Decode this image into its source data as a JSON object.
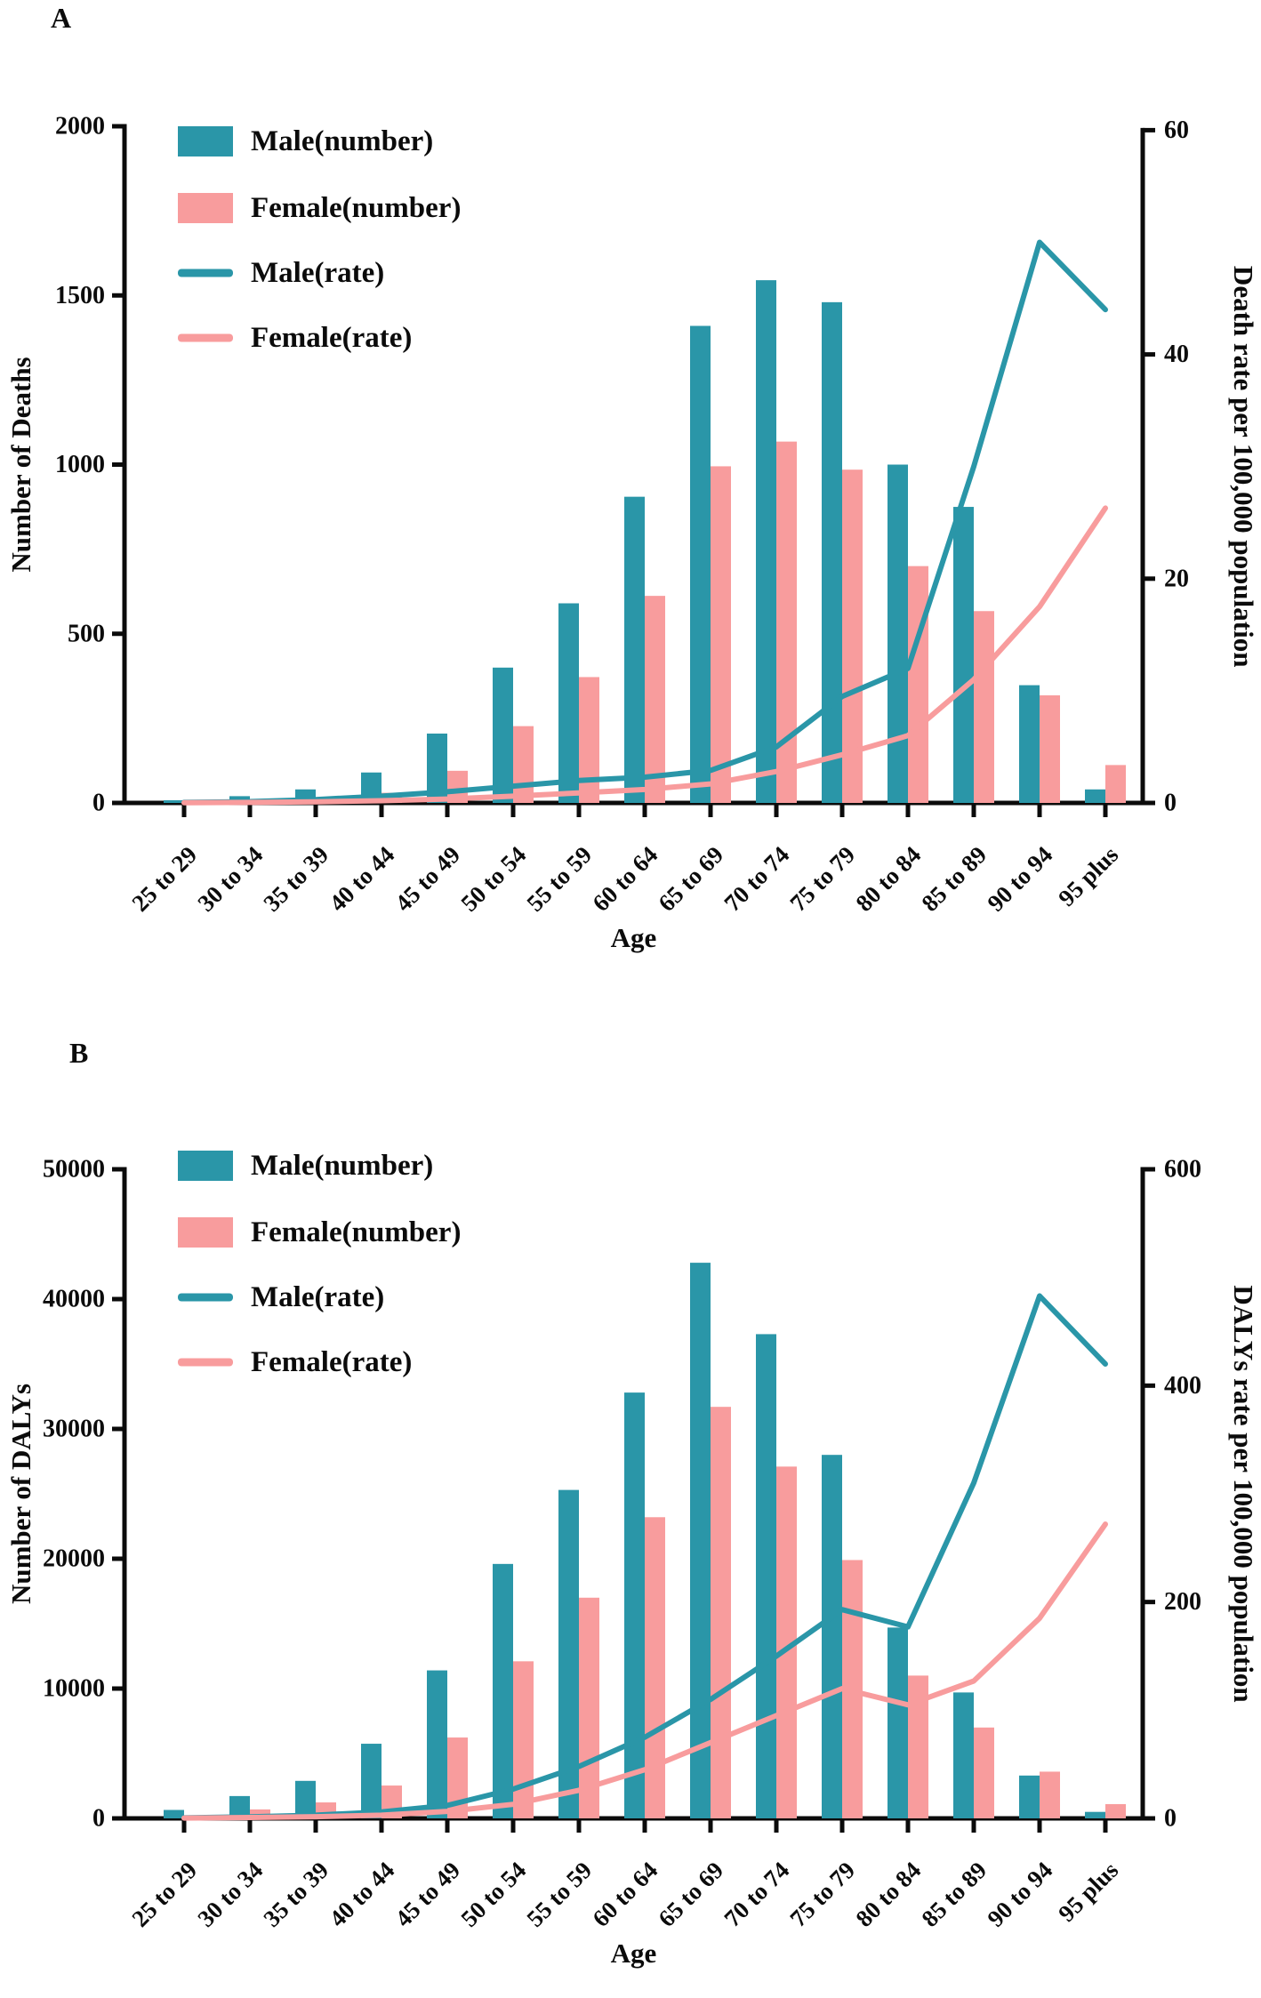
{
  "figure_labels": {
    "panel_a": "A",
    "panel_b": "B"
  },
  "colors": {
    "male": "#2A96A8",
    "female": "#F89C9D",
    "axis": "#0b0b0b",
    "background": "#FFFFFF"
  },
  "chart_data": [
    {
      "panel_label": "A",
      "type": "bar+line",
      "categories": [
        "25 to 29",
        "30 to 34",
        "35 to 39",
        "40 to 44",
        "45 to 49",
        "50 to 54",
        "55 to 59",
        "60 to 64",
        "65 to 69",
        "70 to 74",
        "75 to 79",
        "80 to 84",
        "85 to 89",
        "90 to 94",
        "95 plus"
      ],
      "xlabel": "Age",
      "left_axis": {
        "title": "Number of Deaths",
        "ticks": [
          0,
          500,
          1000,
          1500,
          2000
        ],
        "max": 2000
      },
      "right_axis": {
        "title": "Death rate per 100,000 population",
        "ticks": [
          0,
          20,
          40,
          60
        ],
        "max": 60
      },
      "legend": [
        "Male(number)",
        "Female(number)",
        "Male(rate)",
        "Female(rate)"
      ],
      "series": [
        {
          "name": "Male(number)",
          "type": "bar",
          "axis": "left",
          "color_key": "male",
          "values": [
            8,
            20,
            40,
            90,
            205,
            400,
            590,
            905,
            1410,
            1545,
            1480,
            1000,
            875,
            348,
            40
          ]
        },
        {
          "name": "Female(number)",
          "type": "bar",
          "axis": "left",
          "color_key": "female",
          "values": [
            3,
            6,
            12,
            30,
            95,
            227,
            372,
            612,
            995,
            1068,
            985,
            700,
            567,
            318,
            112
          ]
        },
        {
          "name": "Male(rate)",
          "type": "line",
          "axis": "right",
          "color_key": "male",
          "values": [
            0.05,
            0.12,
            0.3,
            0.6,
            1.0,
            1.5,
            2.0,
            2.3,
            2.9,
            5.0,
            9.5,
            12.0,
            30.0,
            50.0,
            44.0
          ]
        },
        {
          "name": "Female(rate)",
          "type": "line",
          "axis": "right",
          "color_key": "female",
          "values": [
            0.02,
            0.05,
            0.1,
            0.2,
            0.35,
            0.6,
            0.9,
            1.2,
            1.7,
            2.8,
            4.3,
            6.0,
            11.0,
            17.5,
            26.3
          ]
        }
      ]
    },
    {
      "panel_label": "B",
      "type": "bar+line",
      "categories": [
        "25 to 29",
        "30 to 34",
        "35 to 39",
        "40 to 44",
        "45 to 49",
        "50 to 54",
        "55 to 59",
        "60 to 64",
        "65 to 69",
        "70 to 74",
        "75 to 79",
        "80 to 84",
        "85 to 89",
        "90 to 94",
        "95 plus"
      ],
      "xlabel": "Age",
      "left_axis": {
        "title": "Number of DALYs",
        "ticks": [
          0,
          10000,
          20000,
          30000,
          40000,
          50000
        ],
        "max": 50000
      },
      "right_axis": {
        "title": "DALYs rate per 100,000 population",
        "ticks": [
          0,
          200,
          400,
          600
        ],
        "max": 600
      },
      "legend": [
        "Male(number)",
        "Female(number)",
        "Male(rate)",
        "Female(rate)"
      ],
      "series": [
        {
          "name": "Male(number)",
          "type": "bar",
          "axis": "left",
          "color_key": "male",
          "values": [
            650,
            1720,
            2890,
            5750,
            11400,
            19600,
            25300,
            32800,
            42800,
            37300,
            28000,
            14700,
            9700,
            3300,
            500
          ]
        },
        {
          "name": "Female(number)",
          "type": "bar",
          "axis": "left",
          "color_key": "female",
          "values": [
            140,
            690,
            1230,
            2530,
            6230,
            12100,
            17000,
            23200,
            31700,
            27100,
            19900,
            11000,
            7000,
            3600,
            1100
          ]
        },
        {
          "name": "Male(rate)",
          "type": "line",
          "axis": "right",
          "color_key": "male",
          "values": [
            0.5,
            1.5,
            3,
            6,
            12,
            27,
            48,
            75,
            110,
            150,
            193,
            177,
            310,
            483,
            420
          ]
        },
        {
          "name": "Female(rate)",
          "type": "line",
          "axis": "right",
          "color_key": "female",
          "values": [
            0.3,
            0.8,
            1.6,
            3,
            6.5,
            13,
            26,
            45,
            70,
            95,
            120,
            105,
            127,
            185,
            272
          ]
        }
      ]
    }
  ]
}
